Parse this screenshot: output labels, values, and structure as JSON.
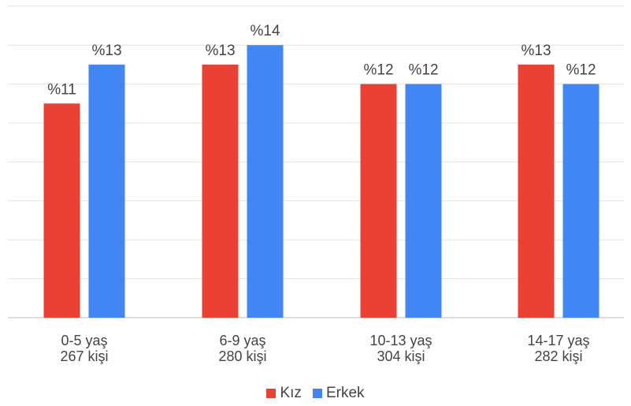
{
  "chart_data": {
    "type": "bar",
    "title": "",
    "xlabel": "",
    "ylabel": "",
    "ylim": [
      0,
      14
    ],
    "grid": true,
    "legend_position": "bottom",
    "categories": [
      [
        "0-5 yaş",
        "267 kişi"
      ],
      [
        "6-9 yaş",
        "280 kişi"
      ],
      [
        "10-13 yaş",
        "304 kişi"
      ],
      [
        "14-17 yaş",
        "282 kişi"
      ]
    ],
    "series": [
      {
        "name": "Kız",
        "color": "#e94235",
        "values": [
          11,
          13,
          12,
          13
        ],
        "labels": [
          "%11",
          "%13",
          "%12",
          "%13"
        ]
      },
      {
        "name": "Erkek",
        "color": "#4285f4",
        "values": [
          13,
          14,
          12,
          12
        ],
        "labels": [
          "%13",
          "%14",
          "%12",
          "%12"
        ]
      }
    ]
  },
  "legend": [
    {
      "label": "Kız",
      "color": "#e94235"
    },
    {
      "label": "Erkek",
      "color": "#4285f4"
    }
  ]
}
